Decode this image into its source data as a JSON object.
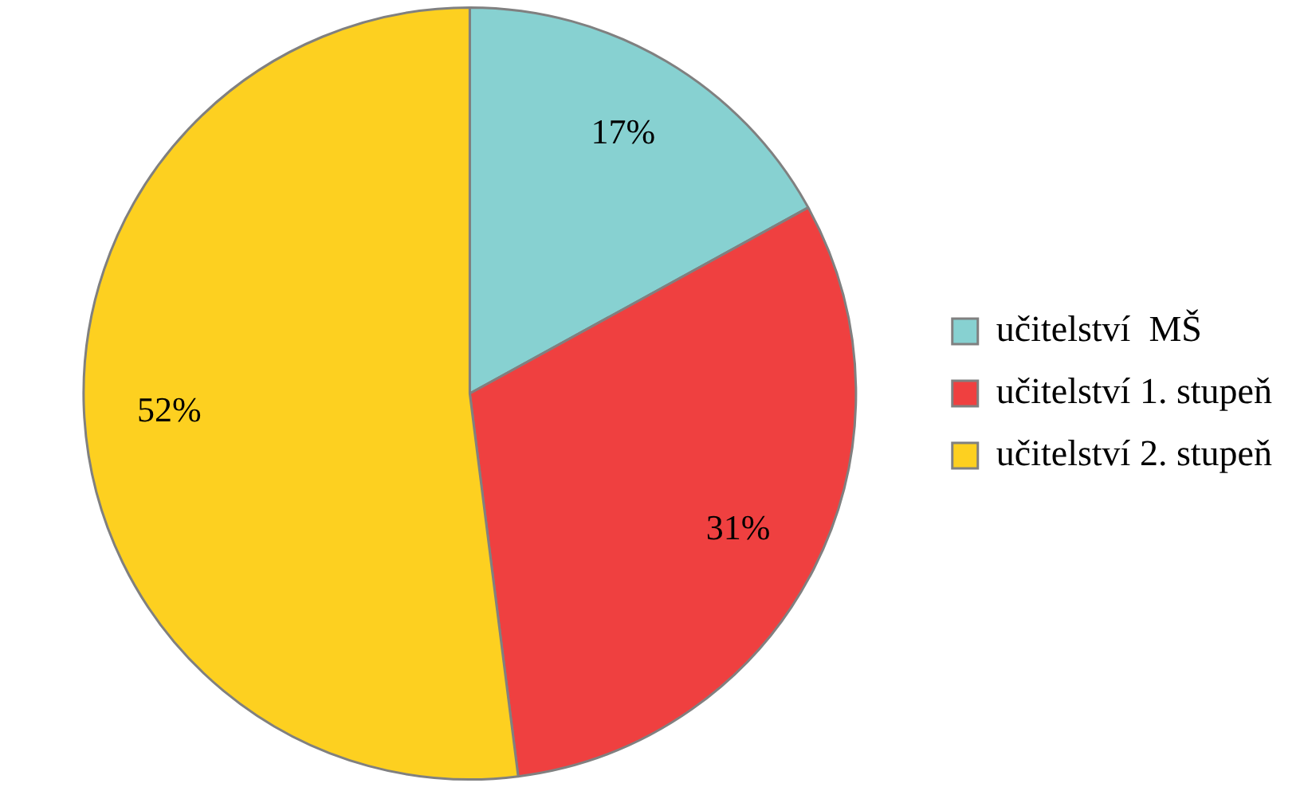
{
  "chart_data": {
    "type": "pie",
    "categories": [
      "učitelství  MŠ",
      "učitelství 1. stupeň",
      "učitelství 2. stupeň"
    ],
    "values": [
      17,
      31,
      52
    ],
    "colors": [
      "#87d1d1",
      "#ef4040",
      "#fdd020"
    ],
    "value_labels": [
      "17%",
      "31%",
      "52%"
    ],
    "legend": "right"
  }
}
